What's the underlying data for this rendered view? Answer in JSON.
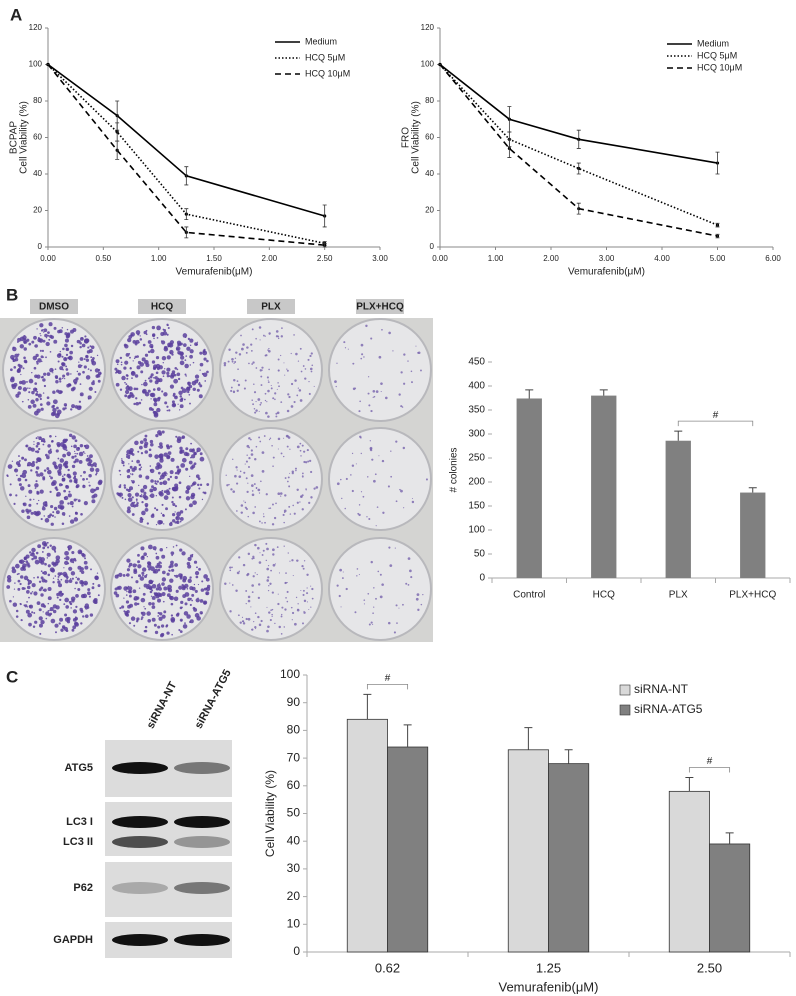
{
  "panel_labels": [
    "A",
    "B",
    "C"
  ],
  "plate_labels": [
    "DMSO",
    "HCQ",
    "PLX",
    "PLX+HCQ"
  ],
  "blot": {
    "columns": [
      "siRNA-NT",
      "siRNA-ATG5"
    ],
    "rows": [
      "ATG5",
      "LC3 I",
      "LC3 II",
      "P62",
      "GAPDH"
    ]
  },
  "chart_data": [
    {
      "type": "line",
      "title": "BCPAP",
      "ylabel": "Cell Viability (%)",
      "xlabel": "Vemurafenib(μM)",
      "x": [
        0,
        0.625,
        1.25,
        2.5
      ],
      "series": [
        {
          "name": "Medium",
          "color": "#000000",
          "line_style": "solid",
          "values": [
            100,
            72,
            39,
            17
          ],
          "errors": [
            0,
            8,
            5,
            6
          ]
        },
        {
          "name": "HCQ 5μM",
          "color": "#000000",
          "line_style": "dotted",
          "values": [
            100,
            63,
            18,
            2
          ],
          "errors": [
            0,
            5,
            3,
            1
          ]
        },
        {
          "name": "HCQ 10μM",
          "color": "#000000",
          "line_style": "dashed",
          "values": [
            100,
            53,
            8,
            1
          ],
          "errors": [
            0,
            5,
            3,
            1
          ]
        }
      ],
      "xlim": [
        0,
        3
      ],
      "xticks": [
        {
          "value": 0,
          "label": "0.00"
        },
        {
          "value": 0.5,
          "label": "0.50"
        },
        {
          "value": 1,
          "label": "1.00"
        },
        {
          "value": 1.5,
          "label": "1.50"
        },
        {
          "value": 2,
          "label": "2.00"
        },
        {
          "value": 2.5,
          "label": "2.50"
        },
        {
          "value": 3,
          "label": "3.00"
        }
      ],
      "ylim": [
        0,
        120
      ],
      "yticks": [
        0,
        20,
        40,
        60,
        80,
        100,
        120
      ],
      "grid": false,
      "legend": "upper right"
    },
    {
      "type": "line",
      "title": "FRO",
      "ylabel": "Cell Viability (%)",
      "xlabel": "Vemurafenib(μM)",
      "x": [
        0,
        1.25,
        2.5,
        5
      ],
      "series": [
        {
          "name": "Medium",
          "color": "#000000",
          "line_style": "solid",
          "values": [
            100,
            70,
            59,
            46
          ],
          "errors": [
            0,
            7,
            5,
            6
          ]
        },
        {
          "name": "HCQ 5μM",
          "color": "#000000",
          "line_style": "dotted",
          "values": [
            100,
            59,
            43,
            12
          ],
          "errors": [
            0,
            4,
            3,
            1
          ]
        },
        {
          "name": "HCQ 10μM",
          "color": "#000000",
          "line_style": "dashed",
          "values": [
            100,
            54,
            21,
            6
          ],
          "errors": [
            0,
            5,
            3,
            1
          ]
        }
      ],
      "xlim": [
        0,
        6
      ],
      "xticks": [
        {
          "value": 0,
          "label": "0.00"
        },
        {
          "value": 1,
          "label": "1.00"
        },
        {
          "value": 2,
          "label": "2.00"
        },
        {
          "value": 3,
          "label": "3.00"
        },
        {
          "value": 4,
          "label": "4.00"
        },
        {
          "value": 5,
          "label": "5.00"
        },
        {
          "value": 6,
          "label": "6.00"
        }
      ],
      "ylim": [
        0,
        120
      ],
      "yticks": [
        0,
        20,
        40,
        60,
        80,
        100,
        120
      ],
      "grid": false,
      "legend": "upper right"
    },
    {
      "type": "bar",
      "ylabel": "# colonies",
      "categories": [
        "Control",
        "HCQ",
        "PLX",
        "PLX+HCQ"
      ],
      "series": [
        {
          "color": "#808080",
          "values": [
            374,
            380,
            286,
            178
          ],
          "errors": [
            18,
            12,
            20,
            10
          ]
        }
      ],
      "ylim": [
        0,
        450
      ],
      "yticks": [
        0,
        50,
        100,
        150,
        200,
        250,
        300,
        350,
        400,
        450
      ],
      "grid": false,
      "annotations": [
        {
          "text": "#",
          "categories": [
            "PLX",
            "PLX+HCQ"
          ]
        }
      ]
    },
    {
      "type": "bar",
      "ylabel": "Cell Viability (%)",
      "xlabel": "Vemurafenib(μM)",
      "categories": [
        "0.62",
        "1.25",
        "2.50"
      ],
      "series": [
        {
          "name": "siRNA-NT",
          "color": "#d9d9d9",
          "values": [
            84,
            73,
            58
          ],
          "errors": [
            9,
            8,
            5
          ]
        },
        {
          "name": "siRNA-ATG5",
          "color": "#808080",
          "values": [
            74,
            68,
            39
          ],
          "errors": [
            8,
            5,
            4
          ]
        }
      ],
      "ylim": [
        0,
        100
      ],
      "yticks": [
        0,
        10,
        20,
        30,
        40,
        50,
        60,
        70,
        80,
        90,
        100
      ],
      "grid": false,
      "legend": "upper right",
      "annotations": [
        {
          "text": "#",
          "categories": [
            "0.62"
          ]
        },
        {
          "text": "#",
          "categories": [
            "2.50"
          ]
        }
      ]
    }
  ]
}
